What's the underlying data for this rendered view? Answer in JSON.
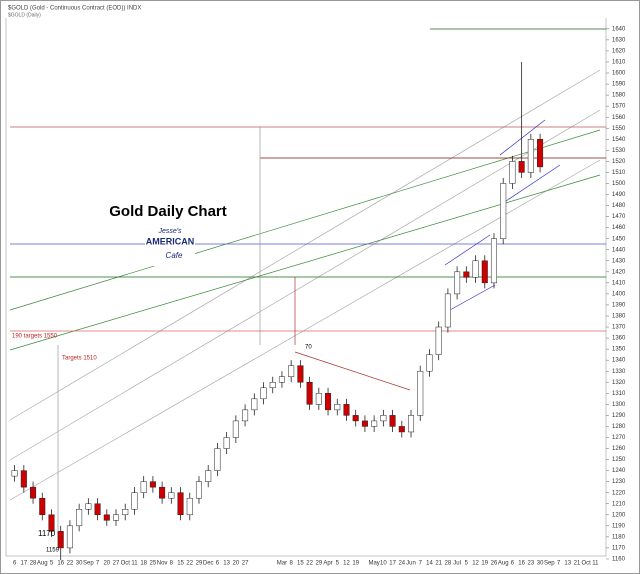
{
  "chart_data": {
    "type": "candlestick",
    "title": "Gold Daily Chart",
    "header": "$GOLD (Gold - Continuous Contract (EOD)) INDX",
    "subheader": "$GOLD (Daily)",
    "logo": [
      "Jesse's",
      "AMERICAN",
      "Cafe"
    ],
    "annotations": [
      "190 targets 1550",
      "Targets 1510",
      "1170",
      "1159",
      "70"
    ],
    "categories": [
      "6",
      "17",
      "28",
      "Aug",
      "5",
      "16",
      "22",
      "30",
      "Sep",
      "7",
      "20",
      "27",
      "Oct",
      "11",
      "18",
      "25",
      "Nov",
      "8",
      "15",
      "22",
      "29",
      "Dec",
      "6",
      "13",
      "20",
      "27",
      null,
      null,
      null,
      "Mar",
      "8",
      "15",
      "22",
      "29",
      "Apr",
      "5",
      "12",
      "19",
      null,
      "May",
      "10",
      "17",
      "24",
      "Jun",
      "7",
      "14",
      "21",
      "28",
      "Jul",
      "5",
      "12",
      "19",
      "26",
      "Aug",
      "6",
      "16",
      "23",
      "30",
      "Sep",
      "7",
      "13",
      "21",
      "Oct",
      "11"
    ],
    "open": [
      1235,
      1240,
      1225,
      1215,
      1200,
      1185,
      1170,
      1190,
      1205,
      1210,
      1200,
      1195,
      1200,
      1205,
      1220,
      1230,
      1225,
      1215,
      1220,
      1200,
      1215,
      1230,
      1240,
      1260,
      1270,
      1285,
      1295,
      1305,
      1315,
      1320,
      1325,
      1335,
      1320,
      1300,
      1310,
      1295,
      1300,
      1290,
      1285,
      1280,
      1285,
      1290,
      1280,
      1275,
      1290,
      1330,
      1345,
      1370,
      1400,
      1420,
      1415,
      1430,
      1410,
      1450,
      1500,
      1520,
      1510,
      1540,
      null,
      null,
      null,
      null,
      null,
      null
    ],
    "high": [
      1245,
      1245,
      1230,
      1220,
      1205,
      1190,
      1195,
      1210,
      1215,
      1215,
      1205,
      1205,
      1210,
      1225,
      1235,
      1235,
      1230,
      1225,
      1225,
      1220,
      1235,
      1245,
      1265,
      1275,
      1290,
      1300,
      1310,
      1320,
      1325,
      1330,
      1340,
      1340,
      1325,
      1315,
      1315,
      1305,
      1305,
      1295,
      1290,
      1290,
      1295,
      1295,
      1285,
      1295,
      1335,
      1350,
      1375,
      1405,
      1425,
      1425,
      1435,
      1435,
      1455,
      1505,
      1525,
      1610,
      1545,
      1545,
      null,
      null,
      null,
      null,
      null,
      null
    ],
    "low": [
      1230,
      1220,
      1210,
      1195,
      1180,
      1159,
      1165,
      1185,
      1200,
      1195,
      1190,
      1190,
      1195,
      1200,
      1215,
      1220,
      1210,
      1210,
      1195,
      1195,
      1210,
      1225,
      1235,
      1255,
      1265,
      1280,
      1290,
      1300,
      1310,
      1315,
      1320,
      1315,
      1295,
      1295,
      1290,
      1290,
      1285,
      1280,
      1275,
      1275,
      1280,
      1275,
      1270,
      1270,
      1285,
      1325,
      1340,
      1365,
      1395,
      1410,
      1410,
      1405,
      1405,
      1445,
      1495,
      1505,
      1505,
      1510,
      null,
      null,
      null,
      null,
      null,
      null
    ],
    "close": [
      1240,
      1225,
      1215,
      1200,
      1185,
      1170,
      1190,
      1205,
      1210,
      1200,
      1195,
      1200,
      1205,
      1220,
      1230,
      1225,
      1215,
      1220,
      1200,
      1215,
      1230,
      1240,
      1260,
      1270,
      1285,
      1295,
      1305,
      1315,
      1320,
      1325,
      1335,
      1320,
      1300,
      1310,
      1295,
      1300,
      1290,
      1285,
      1280,
      1285,
      1290,
      1280,
      1275,
      1290,
      1330,
      1345,
      1370,
      1400,
      1420,
      1415,
      1430,
      1410,
      1450,
      1500,
      1520,
      1510,
      1540,
      1515,
      null,
      null,
      null,
      null,
      null,
      null
    ],
    "up_color": "#ffffff",
    "down_color": "#cc0000",
    "ylim": [
      1150,
      1648
    ],
    "yticks": [
      1160,
      1170,
      1180,
      1190,
      1200,
      1210,
      1220,
      1230,
      1240,
      1250,
      1260,
      1270,
      1280,
      1290,
      1300,
      1310,
      1320,
      1330,
      1340,
      1350,
      1360,
      1370,
      1380,
      1390,
      1400,
      1410,
      1420,
      1430,
      1440,
      1450,
      1460,
      1470,
      1480,
      1490,
      1500,
      1510,
      1520,
      1530,
      1540,
      1550,
      1560,
      1570,
      1580,
      1590,
      1600,
      1610,
      1620,
      1630,
      1640
    ]
  }
}
